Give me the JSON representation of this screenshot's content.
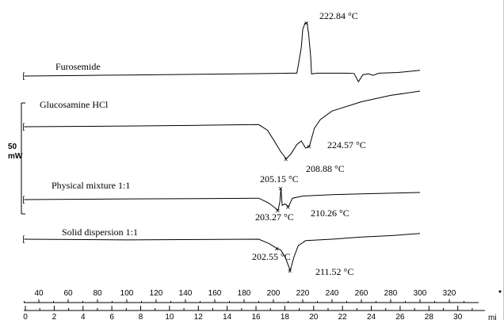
{
  "chart_data": {
    "type": "line",
    "title": "",
    "ylabel": "",
    "scale_label": {
      "value": "50",
      "unit": "mW"
    },
    "x_temp_axis": {
      "unit": "",
      "ticks": [
        40,
        60,
        80,
        100,
        120,
        140,
        160,
        180,
        200,
        220,
        240,
        260,
        280,
        300,
        320
      ],
      "range": [
        25,
        345
      ]
    },
    "x_time_axis": {
      "unit": "mi",
      "ticks": [
        0,
        2,
        4,
        6,
        8,
        10,
        12,
        14,
        16,
        18,
        20,
        22,
        24,
        26,
        28,
        30
      ],
      "range": [
        0,
        31.5
      ]
    },
    "series": [
      {
        "name": "Furosemide",
        "offset": 0,
        "points": [
          [
            30,
            0
          ],
          [
            60,
            0.5
          ],
          [
            100,
            1.5
          ],
          [
            150,
            2.5
          ],
          [
            200,
            3.5
          ],
          [
            212,
            4
          ],
          [
            216,
            4
          ],
          [
            217,
            15
          ],
          [
            219,
            40
          ],
          [
            220,
            65
          ],
          [
            221.5,
            74
          ],
          [
            222.84,
            75
          ],
          [
            224,
            60
          ],
          [
            225.5,
            25
          ],
          [
            226,
            3
          ],
          [
            230,
            4
          ],
          [
            250,
            4
          ],
          [
            255,
            3.5
          ],
          [
            258,
            -8
          ],
          [
            261,
            2
          ],
          [
            265,
            3
          ],
          [
            268,
            1
          ],
          [
            272,
            4
          ],
          [
            285,
            5
          ],
          [
            300,
            8
          ]
        ],
        "annotations": [
          {
            "x": 222.84,
            "y": 75,
            "text": "222.84 °C"
          }
        ]
      },
      {
        "name": "Glucosamine  HCl",
        "offset": 0,
        "points": [
          [
            30,
            0
          ],
          [
            100,
            1
          ],
          [
            150,
            2
          ],
          [
            190,
            3
          ],
          [
            196,
            -5
          ],
          [
            200,
            -18
          ],
          [
            205,
            -35
          ],
          [
            208.88,
            -45
          ],
          [
            212,
            -38
          ],
          [
            216,
            -25
          ],
          [
            219,
            -20
          ],
          [
            222,
            -30
          ],
          [
            224.57,
            -27
          ],
          [
            228,
            -2
          ],
          [
            232,
            10
          ],
          [
            240,
            22
          ],
          [
            260,
            35
          ],
          [
            280,
            44
          ],
          [
            300,
            50
          ]
        ],
        "annotations": [
          {
            "x": 224.57,
            "y": -27,
            "text": "224.57 °C"
          },
          {
            "x": 208.88,
            "y": -45,
            "text": "208.88 °C"
          }
        ]
      },
      {
        "name": "Physical mixture 1:1",
        "offset": 0,
        "points": [
          [
            30,
            0
          ],
          [
            100,
            1
          ],
          [
            150,
            1.5
          ],
          [
            190,
            2
          ],
          [
            197,
            -5
          ],
          [
            203.27,
            -15
          ],
          [
            204.5,
            -2
          ],
          [
            205.15,
            16
          ],
          [
            206,
            -8
          ],
          [
            208,
            -6
          ],
          [
            210.26,
            -10
          ],
          [
            213,
            2
          ],
          [
            220,
            5
          ],
          [
            240,
            7
          ],
          [
            260,
            8
          ],
          [
            280,
            9
          ],
          [
            300,
            10
          ]
        ],
        "annotations": [
          {
            "x": 205.15,
            "y": 16,
            "text": "205.15 °C"
          },
          {
            "x": 203.27,
            "y": -15,
            "text": "203.27 °C"
          },
          {
            "x": 210.26,
            "y": -10,
            "text": "210.26 °C"
          }
        ]
      },
      {
        "name": "Solid dispersion 1:1",
        "offset": 0,
        "points": [
          [
            30,
            0
          ],
          [
            100,
            -1
          ],
          [
            150,
            -0.5
          ],
          [
            190,
            0
          ],
          [
            197,
            -6
          ],
          [
            202.55,
            -13
          ],
          [
            205,
            -15
          ],
          [
            208,
            -25
          ],
          [
            211.52,
            -44
          ],
          [
            214,
            -25
          ],
          [
            217,
            -9
          ],
          [
            222,
            -2
          ],
          [
            240,
            0
          ],
          [
            260,
            3
          ],
          [
            280,
            5
          ],
          [
            300,
            8
          ]
        ],
        "annotations": [
          {
            "x": 202.55,
            "y": -13,
            "text": "202.55 °C"
          },
          {
            "x": 211.52,
            "y": -44,
            "text": "211.52 °C"
          }
        ]
      }
    ]
  }
}
